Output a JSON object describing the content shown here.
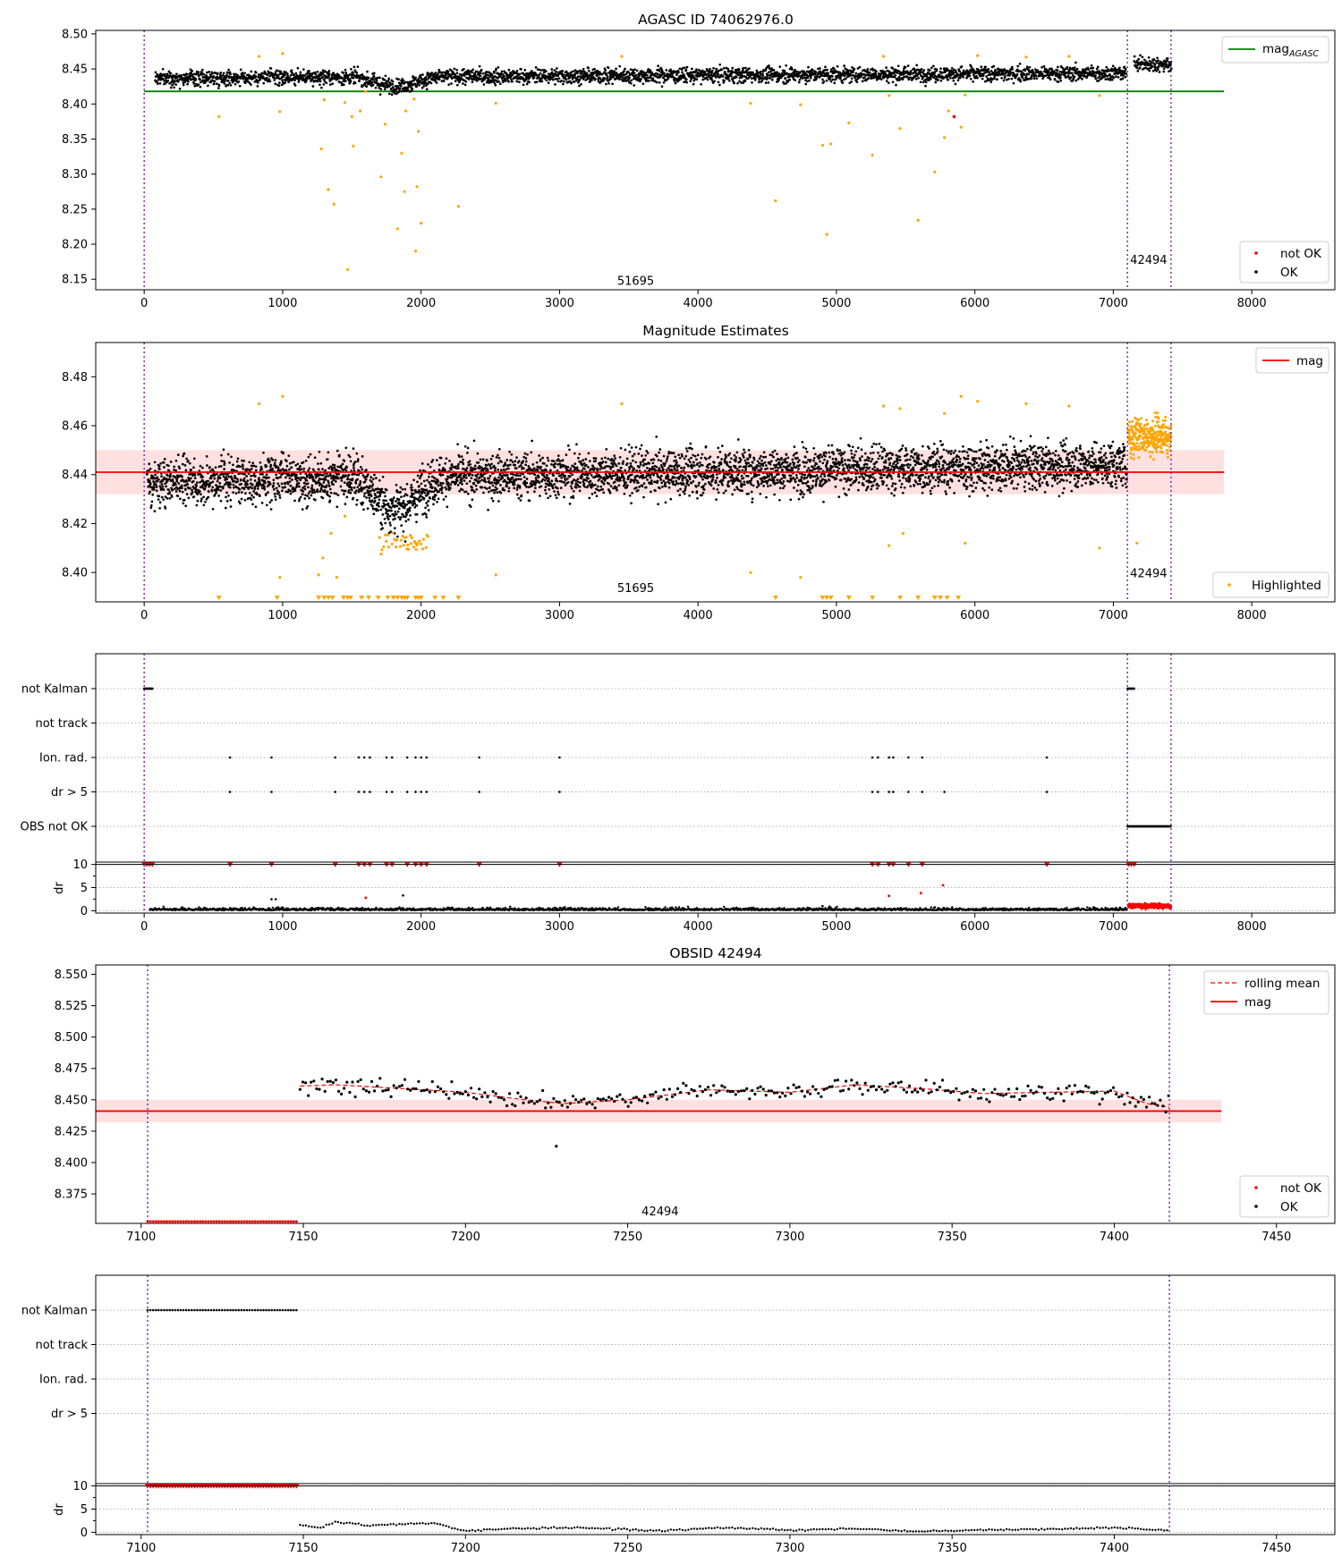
{
  "chart_data": [
    {
      "type": "scatter",
      "title": "AGASC ID 74062976.0",
      "xlim": [
        -350,
        8600
      ],
      "ylim": [
        8.135,
        8.505
      ],
      "xticks": [
        0,
        1000,
        2000,
        3000,
        4000,
        5000,
        6000,
        7000,
        8000
      ],
      "yticks": [
        8.15,
        8.2,
        8.25,
        8.3,
        8.35,
        8.4,
        8.45,
        8.5
      ],
      "obs_boundaries": [
        0,
        7102,
        7417
      ],
      "obs_labels": [
        {
          "text": "51695",
          "x": 3550,
          "y": 8.142
        },
        {
          "text": "42494",
          "x": 7255,
          "y": 8.172
        }
      ],
      "reference_line": {
        "name": "mag_AGASC",
        "value": 8.418,
        "x_range": [
          0,
          7800
        ],
        "color": "#008000"
      },
      "series": [
        {
          "name": "OK",
          "color": "#000000",
          "description": "tracked magnitudes, band 8.42 to 8.46 rising slowly, second obsid slightly brighter around 8.455"
        },
        {
          "name": "not OK",
          "color": "#ff0000",
          "points": [
            [
              5850,
              8.382
            ]
          ]
        },
        {
          "name": "highlighted",
          "color": "#ffa500",
          "points": [
            [
              540,
              8.382
            ],
            [
              830,
              8.468
            ],
            [
              980,
              8.389
            ],
            [
              1000,
              8.472
            ],
            [
              1280,
              8.336
            ],
            [
              1300,
              8.406
            ],
            [
              1330,
              8.278
            ],
            [
              1370,
              8.257
            ],
            [
              1450,
              8.402
            ],
            [
              1470,
              8.164
            ],
            [
              1500,
              8.382
            ],
            [
              1510,
              8.34
            ],
            [
              1560,
              8.39
            ],
            [
              1600,
              8.418
            ],
            [
              1710,
              8.296
            ],
            [
              1740,
              8.371
            ],
            [
              1830,
              8.222
            ],
            [
              1860,
              8.33
            ],
            [
              1880,
              8.275
            ],
            [
              1890,
              8.39
            ],
            [
              1950,
              8.407
            ],
            [
              1960,
              8.19
            ],
            [
              1970,
              8.282
            ],
            [
              1980,
              8.361
            ],
            [
              2000,
              8.23
            ],
            [
              2270,
              8.254
            ],
            [
              2540,
              8.401
            ],
            [
              3450,
              8.468
            ],
            [
              4380,
              8.401
            ],
            [
              4560,
              8.262
            ],
            [
              4740,
              8.399
            ],
            [
              4900,
              8.341
            ],
            [
              4930,
              8.214
            ],
            [
              4960,
              8.343
            ],
            [
              5090,
              8.373
            ],
            [
              5260,
              8.327
            ],
            [
              5340,
              8.468
            ],
            [
              5380,
              8.412
            ],
            [
              5460,
              8.365
            ],
            [
              5590,
              8.234
            ],
            [
              5710,
              8.303
            ],
            [
              5780,
              8.352
            ],
            [
              5810,
              8.39
            ],
            [
              5900,
              8.367
            ],
            [
              5930,
              8.413
            ],
            [
              6020,
              8.469
            ],
            [
              6370,
              8.467
            ],
            [
              6680,
              8.468
            ],
            [
              6900,
              8.412
            ]
          ]
        }
      ],
      "legends": [
        {
          "position": "upper right",
          "entries": [
            "mag_AGASC"
          ]
        },
        {
          "position": "lower right",
          "entries": [
            "not OK",
            "OK"
          ]
        }
      ]
    },
    {
      "type": "scatter",
      "title": "Magnitude Estimates",
      "xlim": [
        -350,
        8600
      ],
      "ylim": [
        8.388,
        8.494
      ],
      "xticks": [
        0,
        1000,
        2000,
        3000,
        4000,
        5000,
        6000,
        7000,
        8000
      ],
      "yticks": [
        8.4,
        8.42,
        8.44,
        8.46,
        8.48
      ],
      "obs_boundaries": [
        0,
        7102,
        7417
      ],
      "obs_labels": [
        {
          "text": "51695",
          "x": 3550,
          "y": 8.392
        },
        {
          "text": "42494",
          "x": 7255,
          "y": 8.398
        }
      ],
      "mag": {
        "name": "mag",
        "value": 8.441,
        "band": [
          8.432,
          8.45
        ],
        "color": "#ff0000",
        "x_range": [
          -350,
          7800
        ]
      },
      "series": [
        {
          "name": "OK",
          "color": "#000000",
          "description": "dense band 8.43 to 8.46 with dip near x 1700-2100 to about 8.42"
        },
        {
          "name": "Highlighted",
          "color": "#ffa500",
          "points": [
            [
              830,
              8.469
            ],
            [
              1000,
              8.472
            ],
            [
              980,
              8.398
            ],
            [
              1260,
              8.399
            ],
            [
              1290,
              8.406
            ],
            [
              1350,
              8.416
            ],
            [
              1390,
              8.398
            ],
            [
              1450,
              8.423
            ],
            [
              2540,
              8.399
            ],
            [
              3450,
              8.469
            ],
            [
              4380,
              8.4
            ],
            [
              4740,
              8.398
            ],
            [
              5340,
              8.468
            ],
            [
              5380,
              8.411
            ],
            [
              5460,
              8.467
            ],
            [
              5480,
              8.416
            ],
            [
              5780,
              8.465
            ],
            [
              5900,
              8.472
            ],
            [
              5930,
              8.412
            ],
            [
              6020,
              8.47
            ],
            [
              6370,
              8.469
            ],
            [
              6680,
              8.468
            ],
            [
              6900,
              8.41
            ],
            [
              7170,
              8.412
            ]
          ],
          "below_axis_x": [
            540,
            960,
            1260,
            1300,
            1330,
            1360,
            1440,
            1470,
            1490,
            1570,
            1620,
            1690,
            1760,
            1800,
            1830,
            1860,
            1880,
            1900,
            1960,
            1980,
            2000,
            2100,
            2160,
            2270,
            4560,
            4900,
            4930,
            4960,
            5090,
            5260,
            5460,
            5590,
            5710,
            5750,
            5800,
            5880
          ]
        }
      ],
      "legends": [
        {
          "position": "upper right",
          "entries": [
            "mag"
          ]
        },
        {
          "position": "lower right",
          "entries": [
            "Highlighted"
          ]
        }
      ]
    },
    {
      "type": "scatter",
      "title": "",
      "xlim": [
        -350,
        8600
      ],
      "xticks": [
        0,
        1000,
        2000,
        3000,
        4000,
        5000,
        6000,
        7000,
        8000
      ],
      "obs_boundaries": [
        0,
        7102,
        7417
      ],
      "flag_rows": [
        "not Kalman",
        "not track",
        "Ion. rad.",
        "dr > 5",
        "OBS not OK"
      ],
      "flags": {
        "not Kalman": [
          [
            0,
            60
          ],
          [
            7102,
            7150
          ]
        ],
        "not track": [],
        "Ion. rad.": [
          620,
          920,
          1380,
          1550,
          1590,
          1630,
          1750,
          1790,
          1900,
          1960,
          2000,
          2040,
          2420,
          3000,
          5260,
          5300,
          5380,
          5410,
          5520,
          5620,
          6520
        ],
        "dr > 5": [
          620,
          920,
          1380,
          1550,
          1590,
          1630,
          1750,
          1790,
          1900,
          1960,
          2000,
          2040,
          2420,
          3000,
          5260,
          5300,
          5380,
          5410,
          5520,
          5620,
          5780,
          6520
        ],
        "OBS not OK": [
          [
            7102,
            7417
          ]
        ]
      },
      "dr_axis": {
        "label": "dr",
        "yticks": [
          0,
          5,
          10
        ],
        "ylim": [
          -0.5,
          10.5
        ]
      },
      "dr_capped_at_10_x": [
        0,
        20,
        40,
        60,
        620,
        920,
        1380,
        1550,
        1590,
        1630,
        1750,
        1790,
        1900,
        1960,
        2000,
        2040,
        2420,
        3000,
        5260,
        5300,
        5380,
        5410,
        5520,
        5620,
        6520,
        7110,
        7130,
        7150
      ],
      "dr_outliers": [
        [
          920,
          2.5
        ],
        [
          950,
          2.5
        ],
        [
          1600,
          2.8
        ],
        [
          1870,
          3.3
        ],
        [
          5380,
          3.2
        ],
        [
          5610,
          3.8
        ],
        [
          5770,
          5.5
        ],
        [
          4900,
          1.0
        ],
        [
          4950,
          0.9
        ]
      ]
    },
    {
      "type": "line",
      "title": "OBSID 42494",
      "xlim": [
        7086,
        7468
      ],
      "ylim": [
        8.3515,
        8.5575
      ],
      "xticks": [
        7100,
        7150,
        7200,
        7250,
        7300,
        7350,
        7400,
        7450
      ],
      "yticks": [
        8.375,
        8.4,
        8.425,
        8.45,
        8.475,
        8.5,
        8.525,
        8.55
      ],
      "obs_boundaries": [
        7102,
        7417
      ],
      "obs_label": {
        "text": "42494",
        "x": 7260,
        "y": 8.358
      },
      "mag": {
        "name": "mag",
        "value": 8.441,
        "band": [
          8.432,
          8.45
        ],
        "color": "#ff0000",
        "x_range": [
          7086,
          7433
        ]
      },
      "rolling_mean": {
        "name": "rolling mean",
        "color": "#ff0000",
        "x": [
          7149,
          7160,
          7180,
          7200,
          7215,
          7230,
          7250,
          7275,
          7300,
          7320,
          7340,
          7360,
          7380,
          7400,
          7410,
          7417
        ],
        "y": [
          8.461,
          8.462,
          8.459,
          8.456,
          8.451,
          8.447,
          8.45,
          8.458,
          8.456,
          8.462,
          8.459,
          8.455,
          8.456,
          8.457,
          8.447,
          8.444
        ]
      },
      "series": [
        {
          "name": "OK",
          "color": "#000000",
          "x_range": [
            7149,
            7417
          ],
          "description": "scatter around rolling mean, one low point at (7228, 8.413)"
        },
        {
          "name": "not OK",
          "color": "#ff0000",
          "x_range": [
            7102,
            7148
          ],
          "value": 8.353
        }
      ],
      "legends": [
        {
          "position": "upper right",
          "entries": [
            "rolling mean",
            "mag"
          ]
        },
        {
          "position": "lower right",
          "entries": [
            "not OK",
            "OK"
          ]
        }
      ]
    },
    {
      "type": "scatter",
      "title": "",
      "xlim": [
        7086,
        7468
      ],
      "xticks": [
        7100,
        7150,
        7200,
        7250,
        7300,
        7350,
        7400,
        7450
      ],
      "obs_boundaries": [
        7102,
        7417
      ],
      "flag_rows": [
        "not Kalman",
        "not track",
        "Ion. rad.",
        "dr > 5"
      ],
      "flags": {
        "not Kalman": [
          [
            7102,
            7148
          ]
        ],
        "not track": [],
        "Ion. rad.": [],
        "dr > 5": []
      },
      "dr_axis": {
        "label": "dr",
        "yticks": [
          0,
          5,
          10
        ],
        "ylim": [
          -0.5,
          10.5
        ]
      },
      "dr_capped_at_10_range": [
        7102,
        7148
      ],
      "dr_curve": {
        "x": [
          7149,
          7155,
          7160,
          7170,
          7190,
          7200,
          7215,
          7235,
          7260,
          7280,
          7300,
          7320,
          7340,
          7360,
          7380,
          7400,
          7417
        ],
        "y": [
          1.6,
          0.9,
          2.2,
          1.5,
          2.0,
          0.3,
          0.8,
          1.0,
          0.3,
          1.0,
          0.5,
          0.8,
          0.2,
          0.5,
          0.7,
          1.0,
          0.3
        ]
      }
    }
  ]
}
